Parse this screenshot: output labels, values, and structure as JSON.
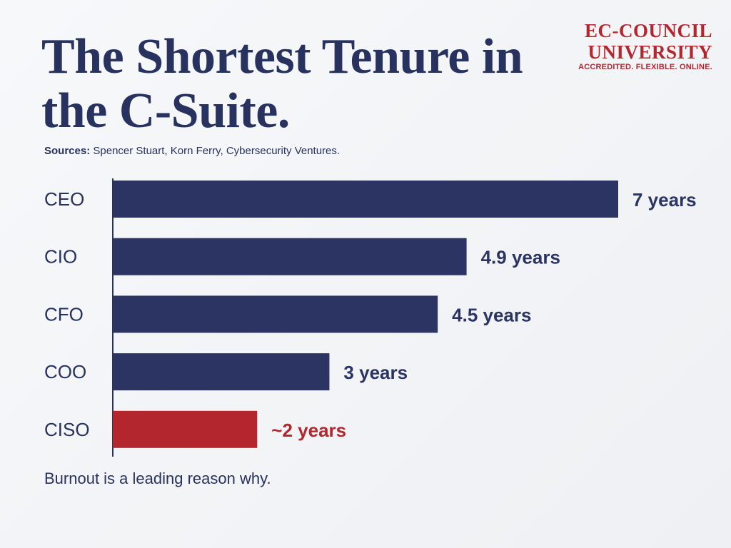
{
  "logo": {
    "line1": "EC-COUNCIL",
    "line2": "UNIVERSITY",
    "tagline": "ACCREDITED. FLEXIBLE. ONLINE."
  },
  "chart_data": {
    "type": "bar",
    "orientation": "horizontal",
    "title": "The Shortest Tenure in the C-Suite.",
    "source_label": "Sources:",
    "source": "Spencer Stuart, Korn Ferry, Cybersecurity Ventures.",
    "categories": [
      "CEO",
      "CIO",
      "CFO",
      "COO",
      "CISO"
    ],
    "values": [
      7,
      4.9,
      4.5,
      3,
      2
    ],
    "value_labels": [
      "7 years",
      "4.9 years",
      "4.5 years",
      "3 years",
      "~2 years"
    ],
    "colors": [
      "#2b3463",
      "#2b3463",
      "#2b3463",
      "#2b3463",
      "#b3262e"
    ],
    "note": "Burnout is a leading reason why."
  }
}
